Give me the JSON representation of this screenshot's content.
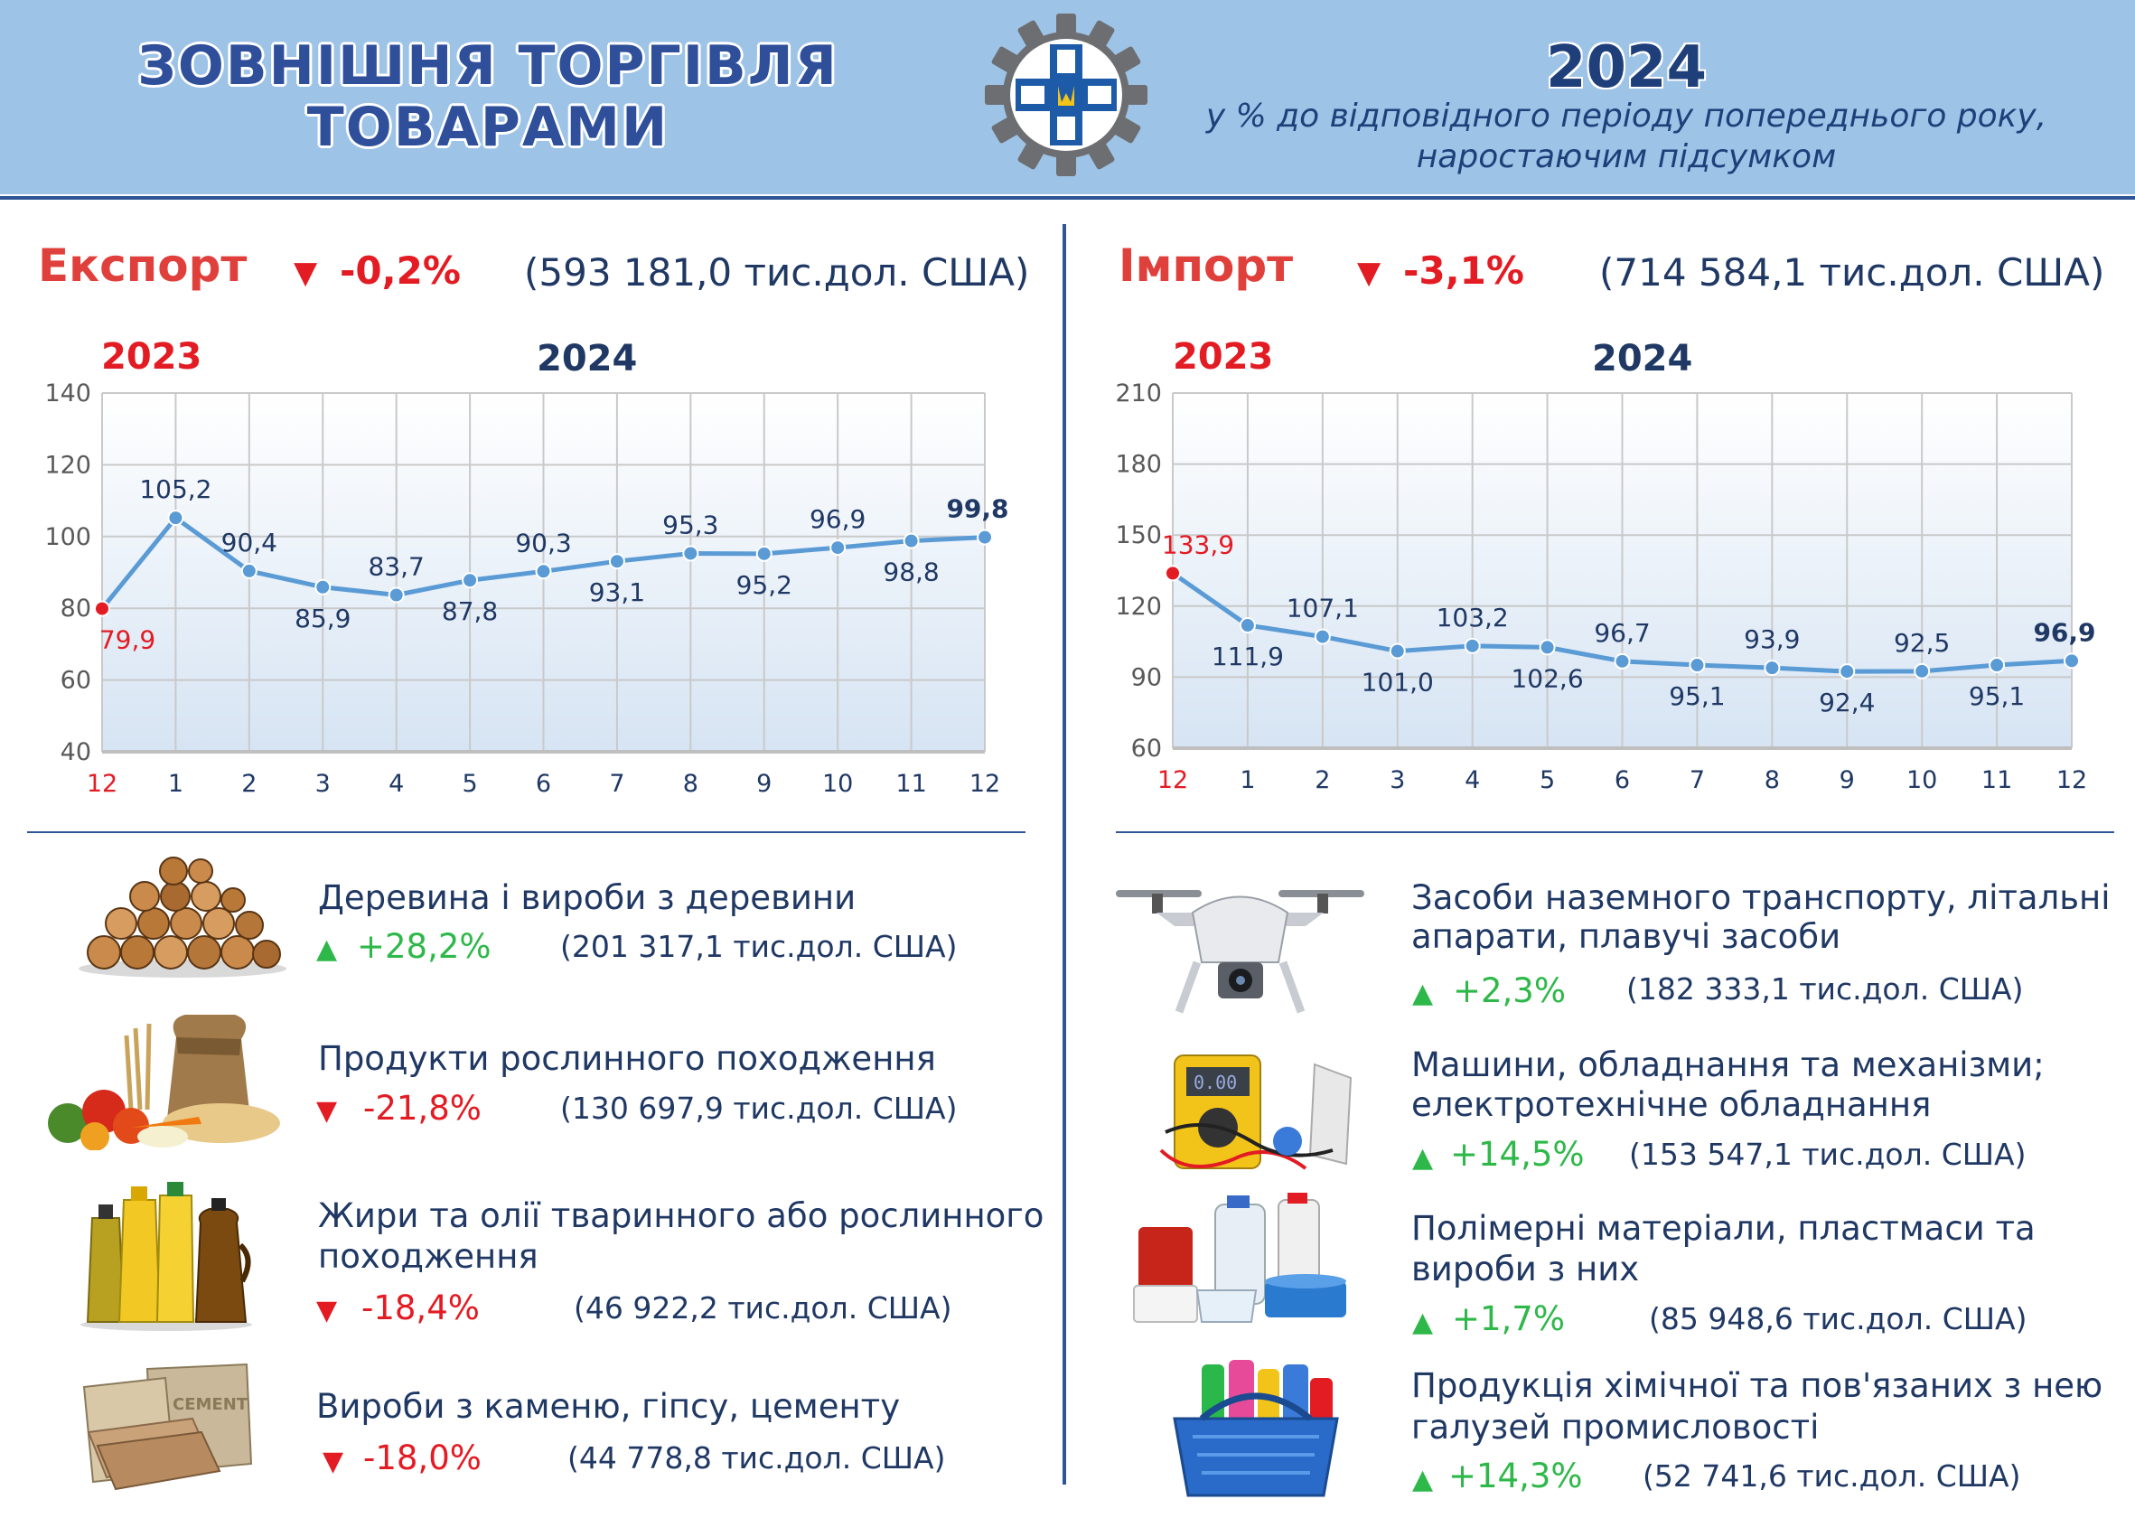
{
  "header": {
    "title_line1": "ЗОВНІШНЯ ТОРГІВЛЯ",
    "title_line2": "ТОВАРАМИ",
    "year": "2024",
    "subtitle_line1": "у % до відповідного періоду попереднього року,",
    "subtitle_line2": "наростаючим підсумком",
    "logo_icon": "statistics-service-logo-icon"
  },
  "export": {
    "label": "Експорт",
    "arrow": "▼",
    "change": "-0,2%",
    "total": "(593 181,0 тис.дол. США)",
    "year_prev": "2023",
    "year_curr": "2024"
  },
  "import": {
    "label": "Імпорт",
    "arrow": "▼",
    "change": "-3,1%",
    "total": "(714 584,1 тис.дол. США)",
    "year_prev": "2023",
    "year_curr": "2024"
  },
  "chart_data": [
    {
      "type": "line",
      "categories": [
        "12",
        "1",
        "2",
        "3",
        "4",
        "5",
        "6",
        "7",
        "8",
        "9",
        "10",
        "11",
        "12"
      ],
      "values": [
        79.9,
        105.2,
        90.4,
        85.9,
        83.7,
        87.8,
        90.3,
        93.1,
        95.3,
        95.2,
        96.9,
        98.8,
        99.8
      ],
      "labels": [
        "79,9",
        "105,2",
        "90,4",
        "85,9",
        "83,7",
        "87,8",
        "90,3",
        "93,1",
        "95,3",
        "95,2",
        "96,9",
        "98,8",
        "99,8"
      ],
      "ylim": [
        40,
        140
      ],
      "yticks": [
        "40",
        "60",
        "80",
        "100",
        "120",
        "140"
      ],
      "grid": true,
      "colors": {
        "line": "#5b9bd5",
        "first_point": "#e31b23",
        "first_label": "#e31b23"
      }
    },
    {
      "type": "line",
      "categories": [
        "12",
        "1",
        "2",
        "3",
        "4",
        "5",
        "6",
        "7",
        "8",
        "9",
        "10",
        "11",
        "12"
      ],
      "values": [
        133.9,
        111.9,
        107.1,
        101.0,
        103.2,
        102.6,
        96.7,
        95.1,
        93.9,
        92.4,
        92.5,
        95.1,
        96.9
      ],
      "labels": [
        "133,9",
        "111,9",
        "107,1",
        "101,0",
        "103,2",
        "102,6",
        "96,7",
        "95,1",
        "93,9",
        "92,4",
        "92,5",
        "95,1",
        "96,9"
      ],
      "ylim": [
        60,
        210
      ],
      "yticks": [
        "60",
        "90",
        "120",
        "150",
        "180",
        "210"
      ],
      "grid": true,
      "colors": {
        "line": "#5b9bd5",
        "first_point": "#e31b23",
        "first_label": "#e31b23"
      }
    }
  ],
  "export_items": [
    {
      "title_lines": [
        "Деревина і вироби з деревини"
      ],
      "direction": "up",
      "arrow": "▲",
      "change": "+28,2%",
      "value": "(201 317,1 тис.дол. США)",
      "icon": "firewood-icon"
    },
    {
      "title_lines": [
        "Продукти рослинного походження"
      ],
      "direction": "down",
      "arrow": "▼",
      "change": "-21,8%",
      "value": "(130 697,9 тис.дол. США)",
      "icon": "vegetables-grain-icon"
    },
    {
      "title_lines": [
        "Жири та олії тваринного або рослинного",
        "походження"
      ],
      "direction": "down",
      "arrow": "▼",
      "change": "-18,4%",
      "value": "(46 922,2 тис.дол. США)",
      "icon": "oil-bottles-icon"
    },
    {
      "title_lines": [
        "Вироби з каменю, гіпсу, цементу"
      ],
      "direction": "down",
      "arrow": "▼",
      "change": "-18,0%",
      "value": "(44 778,8 тис.дол. США)",
      "icon": "cement-bags-icon"
    }
  ],
  "import_items": [
    {
      "title_lines": [
        "Засоби наземного транспорту, літальні",
        "апарати, плавучі засоби"
      ],
      "direction": "up",
      "arrow": "▲",
      "change": "+2,3%",
      "value": "(182 333,1 тис.дол. США)",
      "icon": "drone-icon"
    },
    {
      "title_lines": [
        "Машини, обладнання та механізми;",
        "електротехнічне обладнання"
      ],
      "direction": "up",
      "arrow": "▲",
      "change": "+14,5%",
      "value": "(153 547,1 тис.дол. США)",
      "icon": "multimeter-icon"
    },
    {
      "title_lines": [
        "Полімерні матеріали, пластмаси та",
        "вироби з них"
      ],
      "direction": "up",
      "arrow": "▲",
      "change": "+1,7%",
      "value": "(85 948,6 тис.дол. США)",
      "icon": "plastic-containers-icon"
    },
    {
      "title_lines": [
        "Продукція хімічної та пов'язаних з нею",
        "галузей промисловості"
      ],
      "direction": "up",
      "arrow": "▲",
      "change": "+14,3%",
      "value": "(52 741,6 тис.дол. США)",
      "icon": "cleaning-products-icon"
    }
  ]
}
